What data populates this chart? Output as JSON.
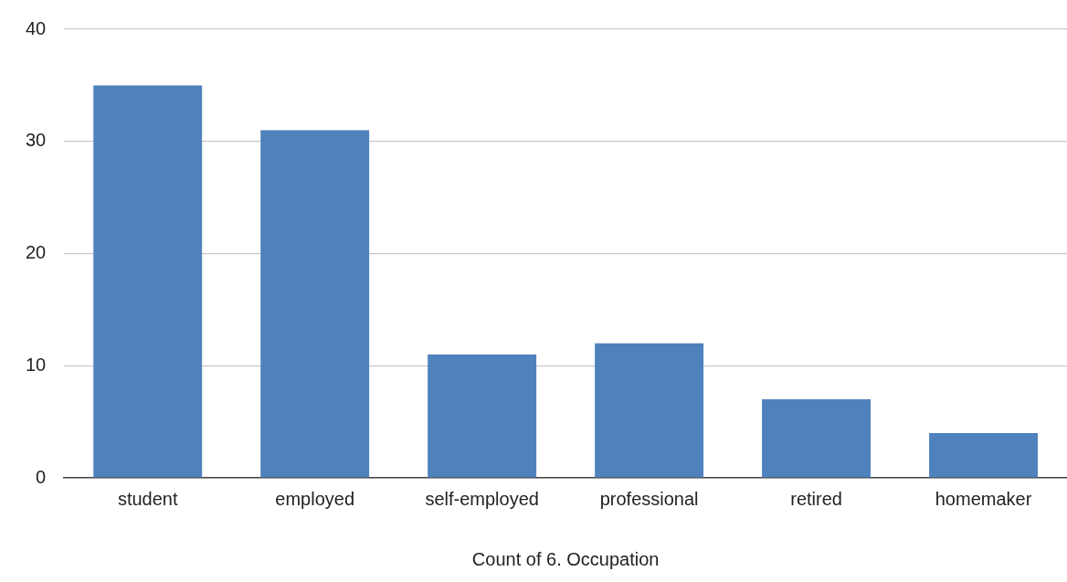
{
  "chart_data": {
    "type": "bar",
    "xlabel": "Count of 6. Occupation",
    "categories": [
      "student",
      "employed",
      "self-employed",
      "professional",
      "retired",
      "homemaker"
    ],
    "values": [
      35,
      31,
      11,
      12,
      7,
      4
    ],
    "color": "#4f81bd",
    "ylim": [
      0,
      40
    ],
    "yticks": [
      0,
      10,
      20,
      30,
      40
    ],
    "grid": "y",
    "legend": false
  }
}
